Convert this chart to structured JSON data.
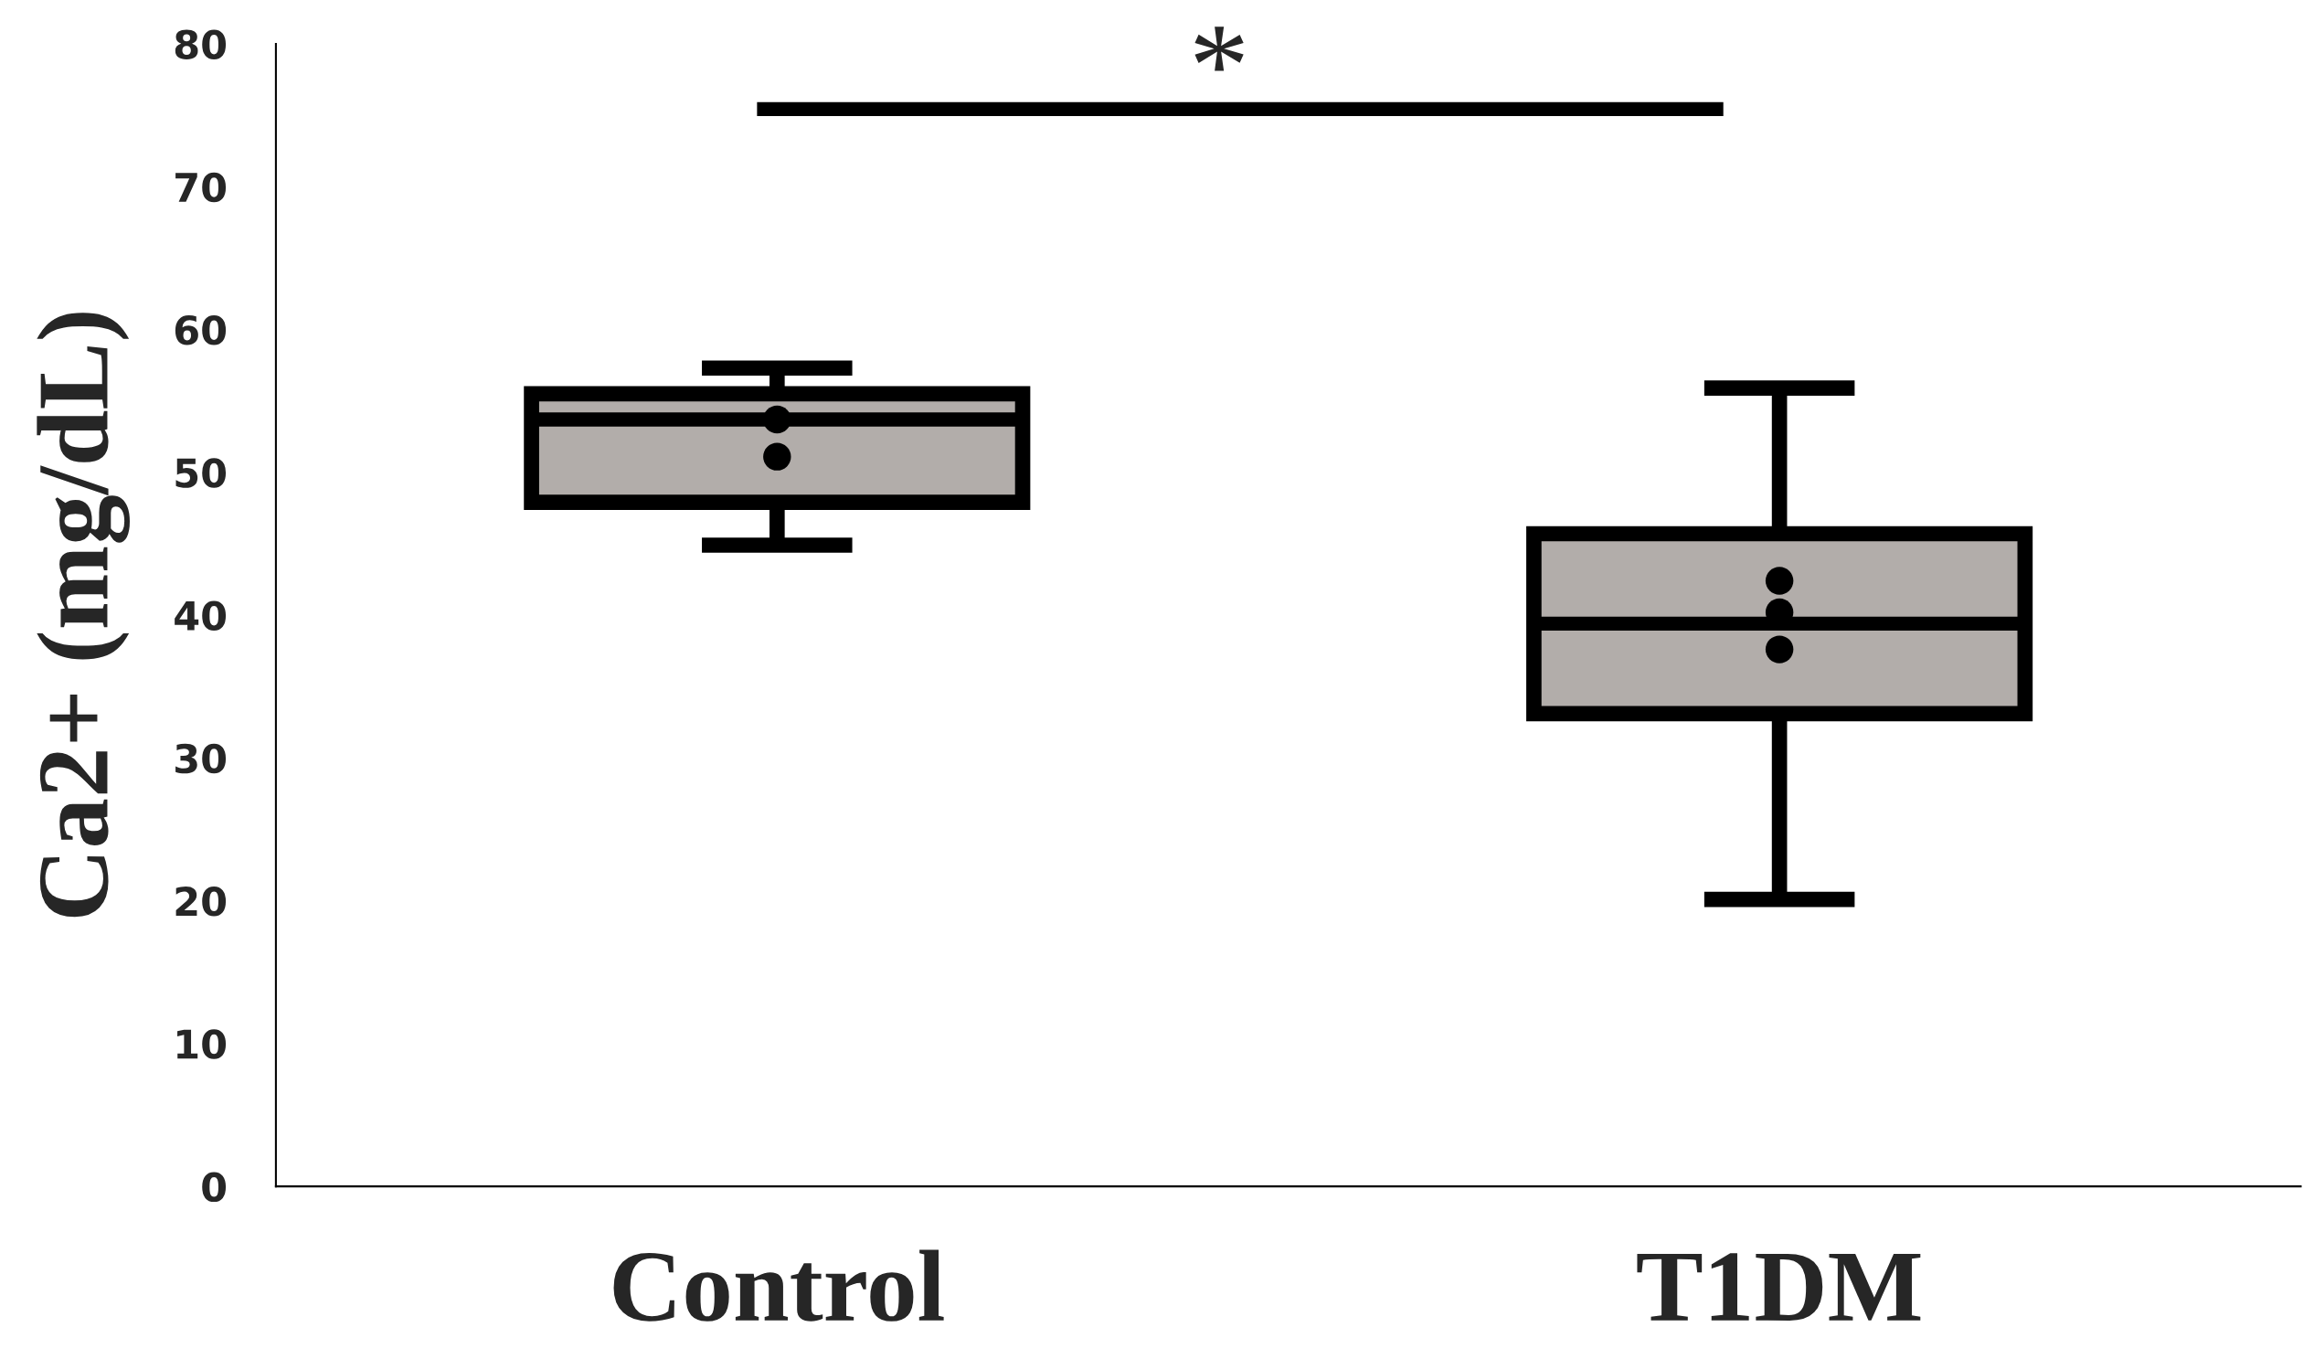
{
  "chart_data": {
    "type": "box",
    "ylabel": "Ca2+ (mg/dL)",
    "categories": [
      "Control",
      "T1DM"
    ],
    "series": [
      {
        "color": "#b2adaa",
        "boxes": [
          {
            "low": 44.9,
            "q1": 47.9,
            "median": 53.7,
            "q3": 55.5,
            "high": 57.3
          },
          {
            "low": 20.1,
            "q1": 33.1,
            "median": 39.4,
            "q3": 45.7,
            "high": 55.9
          }
        ]
      },
      {
        "type": "scatter",
        "color": "#000000",
        "marker": "circle",
        "x": [
          "Control",
          "Control",
          "T1DM",
          "T1DM",
          "T1DM"
        ],
        "values": [
          53.7,
          51.1,
          42.4,
          40.2,
          37.6
        ]
      }
    ],
    "ylim": [
      0,
      80
    ],
    "yticks": [
      0,
      10,
      20,
      30,
      40,
      50,
      60,
      70,
      80
    ],
    "grid": false,
    "annotations": [
      "*"
    ]
  }
}
